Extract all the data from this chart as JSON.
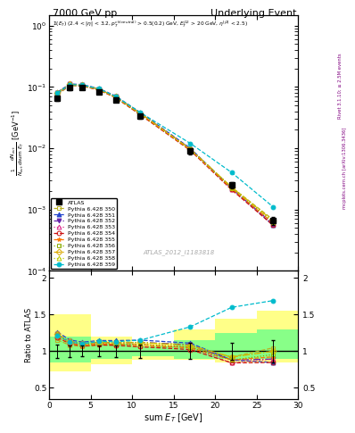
{
  "title_left": "7000 GeV pp",
  "title_right": "Underlying Event",
  "watermark": "ATLAS_2012_I1183818",
  "ylabel_main": "$\\frac{1}{N_{evt}} \\frac{d N_{evt}}{d\\mathrm{sum}\\ E_T}$ [GeV$^{-1}$]",
  "ylabel_ratio": "Ratio to ATLAS",
  "xlabel": "sum $E_T$ [GeV]",
  "xlim": [
    0,
    30
  ],
  "ylim_main": [
    0.0001,
    1.5
  ],
  "ylim_ratio": [
    0.35,
    2.1
  ],
  "atlas_x": [
    1.0,
    2.5,
    4.0,
    6.0,
    8.0,
    11.0,
    17.0,
    22.0,
    27.0
  ],
  "atlas_y": [
    0.065,
    0.097,
    0.097,
    0.082,
    0.062,
    0.033,
    0.009,
    0.0025,
    0.00065
  ],
  "atlas_yerr": [
    0.006,
    0.008,
    0.007,
    0.006,
    0.005,
    0.003,
    0.001,
    0.0003,
    0.0001
  ],
  "mc_x": [
    1.0,
    2.5,
    4.0,
    6.0,
    8.0,
    11.0,
    17.0,
    22.0,
    27.0
  ],
  "mc_data": {
    "350": {
      "y": [
        0.075,
        0.105,
        0.103,
        0.089,
        0.067,
        0.035,
        0.0095,
        0.0023,
        0.00068
      ],
      "color": "#b8b020",
      "marker": "s",
      "mfc": "none",
      "ls": "--",
      "label": "Pythia 6.428 350"
    },
    "351": {
      "y": [
        0.082,
        0.112,
        0.109,
        0.094,
        0.071,
        0.038,
        0.01,
        0.0022,
        0.00055
      ],
      "color": "#2244cc",
      "marker": "^",
      "mfc": "#2244cc",
      "ls": "--",
      "label": "Pythia 6.428 351"
    },
    "352": {
      "y": [
        0.08,
        0.11,
        0.107,
        0.092,
        0.069,
        0.037,
        0.0098,
        0.0022,
        0.00058
      ],
      "color": "#6622aa",
      "marker": "v",
      "mfc": "#6622aa",
      "ls": "-.",
      "label": "Pythia 6.428 352"
    },
    "353": {
      "y": [
        0.079,
        0.109,
        0.106,
        0.091,
        0.068,
        0.036,
        0.0095,
        0.0021,
        0.00058
      ],
      "color": "#dd2288",
      "marker": "^",
      "mfc": "none",
      "ls": ":",
      "label": "Pythia 6.428 353"
    },
    "354": {
      "y": [
        0.077,
        0.107,
        0.104,
        0.089,
        0.067,
        0.035,
        0.0092,
        0.0021,
        0.00055
      ],
      "color": "#cc1111",
      "marker": "o",
      "mfc": "none",
      "ls": "--",
      "label": "Pythia 6.428 354"
    },
    "355": {
      "y": [
        0.078,
        0.108,
        0.105,
        0.09,
        0.068,
        0.036,
        0.0094,
        0.0022,
        0.0006
      ],
      "color": "#ff7700",
      "marker": "*",
      "mfc": "#ff7700",
      "ls": "--",
      "label": "Pythia 6.428 355"
    },
    "356": {
      "y": [
        0.079,
        0.109,
        0.106,
        0.091,
        0.068,
        0.036,
        0.0095,
        0.0022,
        0.00062
      ],
      "color": "#88aa00",
      "marker": "s",
      "mfc": "none",
      "ls": ":",
      "label": "Pythia 6.428 356"
    },
    "357": {
      "y": [
        0.08,
        0.11,
        0.107,
        0.092,
        0.069,
        0.037,
        0.0097,
        0.0023,
        0.00065
      ],
      "color": "#ddaa00",
      "marker": "D",
      "mfc": "none",
      "ls": "-.",
      "label": "Pythia 6.428 357"
    },
    "358": {
      "y": [
        0.08,
        0.11,
        0.107,
        0.092,
        0.069,
        0.037,
        0.0097,
        0.0023,
        0.00065
      ],
      "color": "#bbcc00",
      "marker": "^",
      "mfc": "none",
      "ls": ":",
      "label": "Pythia 6.428 358"
    },
    "359": {
      "y": [
        0.079,
        0.109,
        0.107,
        0.093,
        0.07,
        0.038,
        0.012,
        0.004,
        0.0011
      ],
      "color": "#00bbcc",
      "marker": "o",
      "mfc": "#00bbcc",
      "ls": "--",
      "label": "Pythia 6.428 359"
    }
  },
  "ratio_band_yellow_x": [
    0,
    5,
    10,
    15,
    20,
    25,
    30
  ],
  "ratio_band_yellow_lo": [
    0.72,
    0.82,
    0.88,
    0.88,
    0.85,
    0.85,
    0.85
  ],
  "ratio_band_yellow_hi": [
    1.5,
    1.2,
    1.12,
    1.3,
    1.45,
    1.55,
    1.55
  ],
  "ratio_band_green_x": [
    0,
    5,
    10,
    15,
    20,
    25,
    30
  ],
  "ratio_band_green_lo": [
    0.85,
    0.9,
    0.93,
    0.9,
    0.9,
    0.9,
    0.9
  ],
  "ratio_band_green_hi": [
    1.2,
    1.1,
    1.07,
    1.15,
    1.25,
    1.3,
    1.3
  ],
  "right_label1": "Rivet 3.1.10; ≥ 2.5M events",
  "right_label2": "mcplots.cern.ch [arXiv:1306.3436]"
}
